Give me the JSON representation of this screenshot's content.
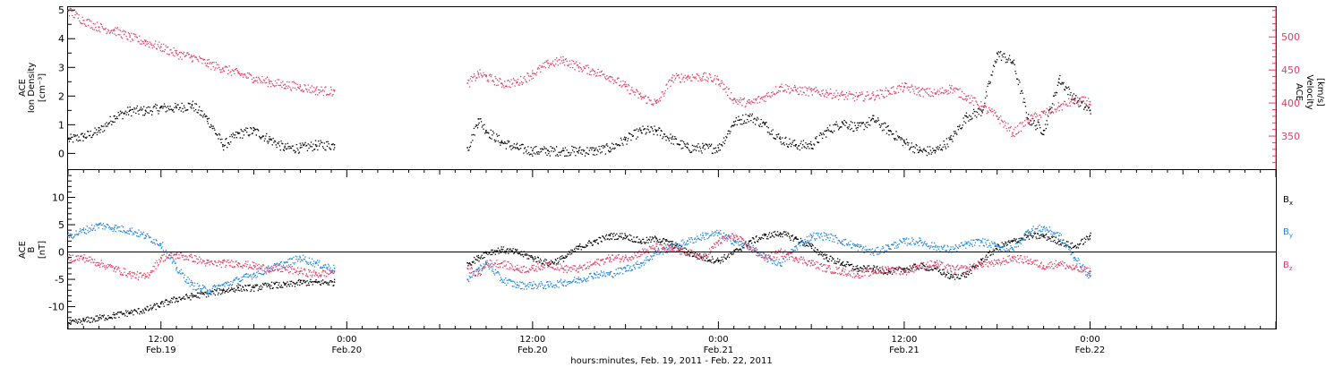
{
  "colors": {
    "axis": "#000000",
    "density": "#000000",
    "velocity": "#e33d64",
    "bx": "#000000",
    "by": "#1e86e0",
    "bz": "#e33d64"
  },
  "x_axis": {
    "ticks": [
      {
        "time": "12:00",
        "date": "Feb.19",
        "hours": 36
      },
      {
        "time": "0:00",
        "date": "Feb.20",
        "hours": 48
      },
      {
        "time": "12:00",
        "date": "Feb.20",
        "hours": 60
      },
      {
        "time": "0:00",
        "date": "Feb.21",
        "hours": 72
      },
      {
        "time": "12:00",
        "date": "Feb.21",
        "hours": 84
      },
      {
        "time": "0:00",
        "date": "Feb.22",
        "hours": 96
      }
    ],
    "xlabel": "hours:minutes, Feb. 19, 2011 - Feb. 22, 2011",
    "range_hours": [
      30,
      108
    ],
    "gap_hours": [
      47.2,
      55.8
    ]
  },
  "chart_data": [
    {
      "type": "scatter",
      "panel": "plasma",
      "ylabel_left": [
        "ACE",
        "Ion Density",
        "[cm⁻³]"
      ],
      "ylabel_right": [
        "ACE",
        "Velocity",
        "[km/s]"
      ],
      "ylim_left": [
        -0.3,
        5.1
      ],
      "ylim_right": [
        300,
        545
      ],
      "yticks_left": [
        "0",
        "1",
        "2",
        "3",
        "4",
        "5"
      ],
      "yticks_right": [
        "350",
        "400",
        "450",
        "500"
      ],
      "series": [
        {
          "key": "density",
          "axis": "left",
          "x": [
            30,
            31,
            32,
            33,
            34,
            35,
            36,
            37,
            38,
            39,
            40,
            41,
            42,
            43,
            44,
            45,
            46,
            47.2,
            55.8,
            56.5,
            57,
            58,
            59,
            60,
            61,
            62,
            63,
            64,
            65,
            66,
            67,
            68,
            69,
            70,
            71,
            72,
            73,
            74,
            75,
            76,
            77,
            78,
            79,
            80,
            81,
            82,
            83,
            84,
            85,
            86,
            87,
            88,
            89,
            90,
            91,
            92,
            93,
            94,
            95,
            96
          ],
          "y": [
            0.5,
            0.6,
            0.8,
            1.3,
            1.5,
            1.5,
            1.6,
            1.6,
            1.7,
            1.2,
            0.3,
            0.7,
            0.8,
            0.5,
            0.2,
            0.2,
            0.3,
            0.3,
            0.2,
            1.2,
            0.8,
            0.4,
            0.2,
            0.1,
            0.1,
            0.1,
            0.1,
            0.1,
            0.2,
            0.5,
            0.8,
            0.8,
            0.5,
            0.2,
            0.2,
            0.2,
            1.1,
            1.3,
            1.0,
            0.5,
            0.3,
            0.3,
            0.8,
            1.1,
            0.9,
            1.2,
            0.8,
            0.4,
            0.1,
            0.1,
            0.5,
            1.3,
            1.5,
            3.5,
            3.2,
            1.2,
            0.8,
            2.6,
            1.9,
            1.5
          ]
        },
        {
          "key": "velocity",
          "axis": "right",
          "x": [
            30,
            31,
            32,
            33,
            34,
            35,
            36,
            37,
            38,
            39,
            40,
            41,
            42,
            43,
            44,
            45,
            46,
            47.2,
            55.8,
            56.5,
            57,
            58,
            59,
            60,
            61,
            62,
            63,
            64,
            65,
            66,
            67,
            68,
            69,
            70,
            71,
            72,
            73,
            74,
            75,
            76,
            77,
            78,
            79,
            80,
            81,
            82,
            83,
            84,
            85,
            86,
            87,
            88,
            89,
            90,
            91,
            92,
            93,
            94,
            95,
            96
          ],
          "y": [
            540,
            525,
            515,
            510,
            500,
            493,
            485,
            475,
            470,
            460,
            453,
            445,
            438,
            432,
            428,
            425,
            420,
            418,
            430,
            445,
            440,
            430,
            432,
            445,
            460,
            465,
            455,
            448,
            440,
            425,
            410,
            400,
            438,
            440,
            440,
            435,
            405,
            400,
            410,
            425,
            420,
            418,
            416,
            412,
            410,
            412,
            418,
            425,
            418,
            415,
            423,
            410,
            395,
            380,
            355,
            375,
            385,
            395,
            405,
            402
          ]
        }
      ]
    },
    {
      "type": "scatter",
      "panel": "magnetic-field",
      "ylabel_left": [
        "ACE",
        "B",
        "[nT]"
      ],
      "ylim": [
        -14,
        15
      ],
      "yticks": [
        "-10",
        "-5",
        "0",
        "5",
        "10"
      ],
      "zero_line": true,
      "series": [
        {
          "key": "bx",
          "name": "Bx",
          "x": [
            30,
            31,
            32,
            33,
            34,
            35,
            36,
            37,
            38,
            39,
            40,
            41,
            42,
            43,
            44,
            45,
            46,
            47.2,
            55.8,
            56.5,
            57,
            58,
            59,
            60,
            61,
            62,
            63,
            64,
            65,
            66,
            67,
            68,
            69,
            70,
            71,
            72,
            73,
            74,
            75,
            76,
            77,
            78,
            79,
            80,
            81,
            82,
            83,
            84,
            85,
            86,
            87,
            88,
            89,
            90,
            91,
            92,
            93,
            94,
            95,
            96
          ],
          "y": [
            -13,
            -12.5,
            -12,
            -11.5,
            -11,
            -10.5,
            -9.5,
            -8.5,
            -8,
            -7.5,
            -7,
            -6.5,
            -6.5,
            -6,
            -6,
            -5.5,
            -5.5,
            -5.5,
            -2,
            -1,
            0,
            0.5,
            0,
            -1,
            -2,
            -1,
            1,
            2,
            3,
            3,
            2,
            2.5,
            1.5,
            0,
            -1,
            -1.5,
            0,
            2,
            3,
            3.5,
            2.5,
            1,
            -1,
            -2,
            -3,
            -3,
            -3.5,
            -3,
            -2.5,
            -3,
            -4.5,
            -4,
            -1.5,
            1,
            2,
            3,
            3,
            2,
            1,
            3
          ]
        },
        {
          "key": "by",
          "name": "By",
          "x": [
            30,
            31,
            32,
            33,
            34,
            35,
            36,
            37,
            38,
            39,
            40,
            41,
            42,
            43,
            44,
            45,
            46,
            47.2,
            55.8,
            56.5,
            57,
            58,
            59,
            60,
            61,
            62,
            63,
            64,
            65,
            66,
            67,
            68,
            69,
            70,
            71,
            72,
            73,
            74,
            75,
            76,
            77,
            78,
            79,
            80,
            81,
            82,
            83,
            84,
            85,
            86,
            87,
            88,
            89,
            90,
            91,
            92,
            93,
            94,
            95,
            96
          ],
          "y": [
            3,
            4,
            5,
            4.5,
            4,
            3,
            1.5,
            -3,
            -6,
            -7,
            -6,
            -5,
            -4,
            -3,
            -2,
            -1,
            -2,
            -3,
            -5,
            -3,
            -2,
            -5,
            -6,
            -6,
            -6,
            -5.5,
            -5,
            -4,
            -4,
            -3,
            -2,
            0,
            1,
            2,
            3,
            3.5,
            2,
            1,
            -1,
            -2,
            1,
            3,
            3,
            2,
            1,
            0,
            1,
            2,
            2,
            1,
            0.5,
            1.5,
            2,
            1,
            0.5,
            4,
            4.5,
            3,
            -1,
            -4.5
          ]
        },
        {
          "key": "bz",
          "name": "Bz",
          "x": [
            30,
            31,
            32,
            33,
            34,
            35,
            36,
            37,
            38,
            39,
            40,
            41,
            42,
            43,
            44,
            45,
            46,
            47.2,
            55.8,
            56.5,
            57,
            58,
            59,
            60,
            61,
            62,
            63,
            64,
            65,
            66,
            67,
            68,
            69,
            70,
            71,
            72,
            73,
            74,
            75,
            76,
            77,
            78,
            79,
            80,
            81,
            82,
            83,
            84,
            85,
            86,
            87,
            88,
            89,
            90,
            91,
            92,
            93,
            94,
            95,
            96
          ],
          "y": [
            -1,
            -1,
            -2,
            -3,
            -4,
            -4.5,
            -1,
            -0.5,
            -1,
            -2,
            -2,
            -2,
            -2.5,
            -3,
            -3,
            -3.5,
            -4,
            -3.5,
            -3,
            -4,
            -2,
            -2,
            -3,
            -3,
            -2,
            -3,
            -3,
            -2,
            -1,
            -1,
            0,
            1,
            0.5,
            0,
            -1,
            2,
            3,
            1,
            -1,
            0,
            -1,
            -2,
            -3,
            -3.5,
            -4,
            -3.5,
            -3,
            -3.5,
            -2.5,
            -2,
            -3,
            -3,
            -2,
            -2,
            -1,
            -1.5,
            -2.5,
            -2,
            -3,
            -3.5
          ]
        }
      ]
    }
  ]
}
